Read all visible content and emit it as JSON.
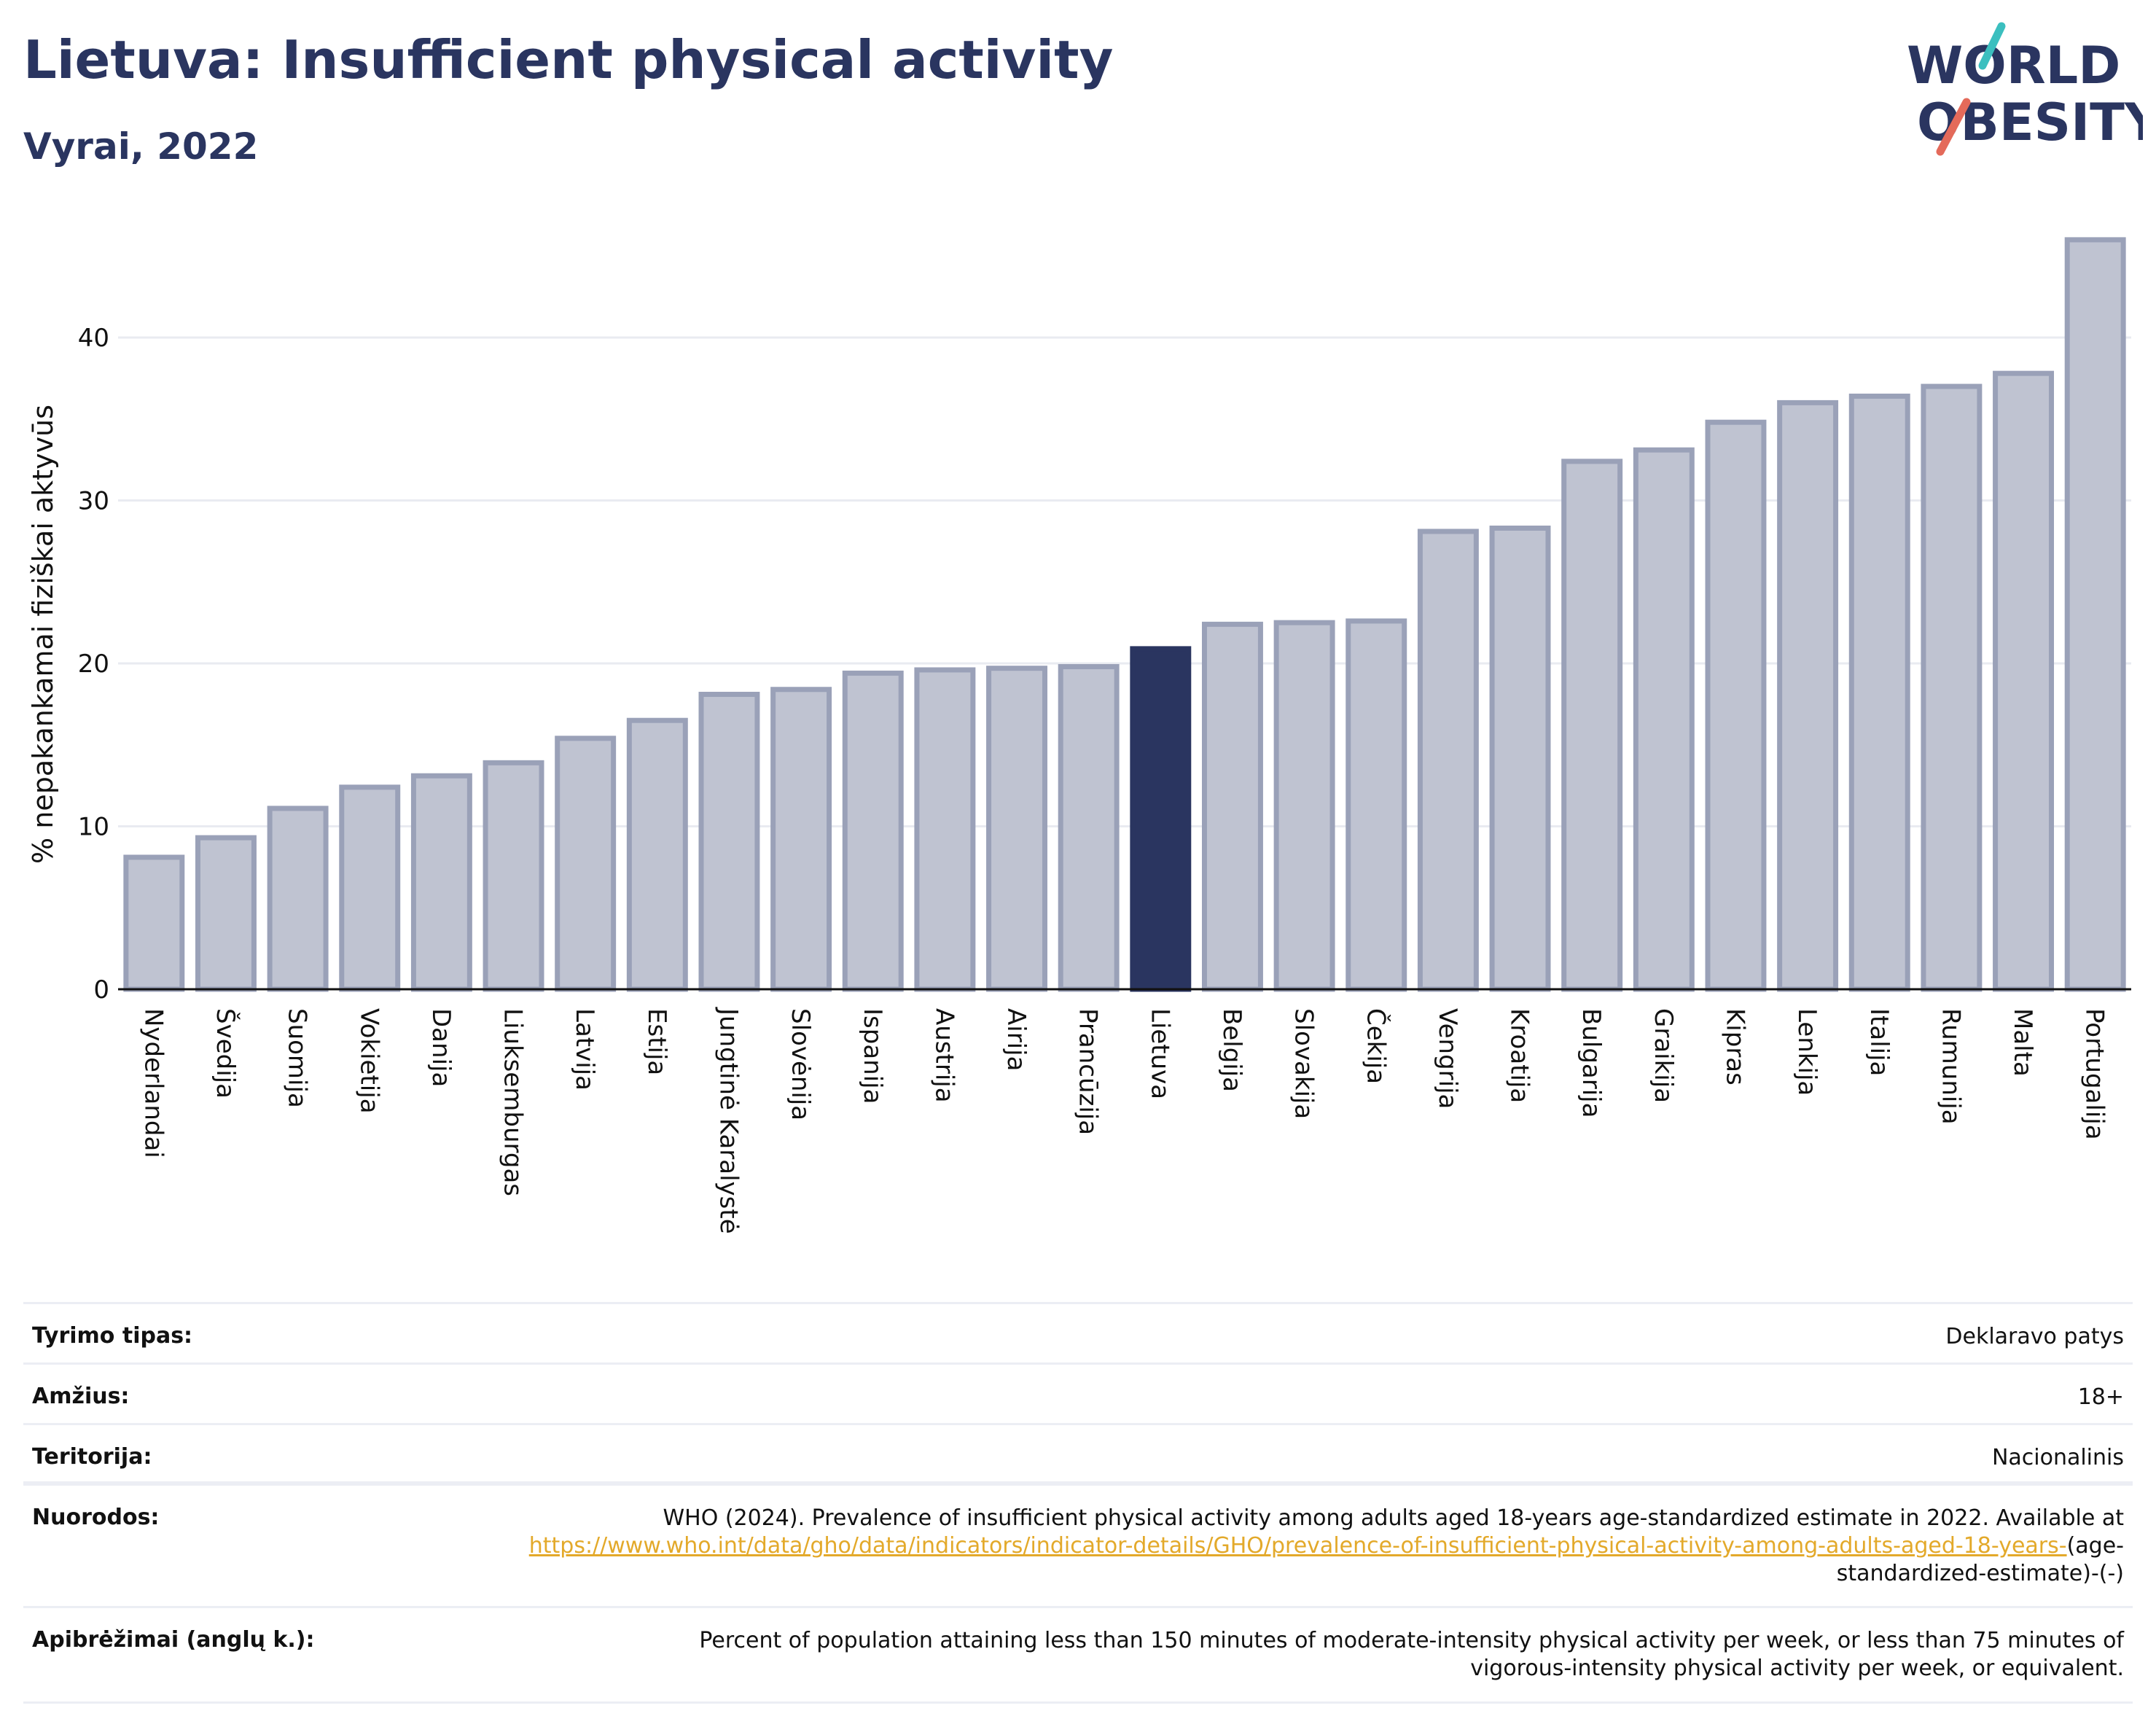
{
  "header": {
    "title": "Lietuva: Insufficient physical activity",
    "subtitle": "Vyrai, 2022"
  },
  "logo": {
    "line1": "WORLD",
    "line2": "OBESITY",
    "slash_colors": [
      "#3bbfbf",
      "#e46a5a"
    ],
    "text_color": "#2a3560"
  },
  "colors": {
    "bar": "#bfc3d1",
    "bar_border": "#9aa1b8",
    "highlight": "#2a3560",
    "grid": "#e9ebf1",
    "axis": "#111111"
  },
  "chart_data": {
    "type": "bar",
    "title": "Lietuva: Insufficient physical activity",
    "subtitle": "Vyrai, 2022",
    "xlabel": "",
    "ylabel": "% nepakankamai fiziškai aktyvūs",
    "ylim": [
      0,
      46.5
    ],
    "yticks": [
      0,
      10,
      20,
      30,
      40
    ],
    "grid": true,
    "highlight": "Lietuva",
    "categories": [
      "Nyderlandai",
      "Švedija",
      "Suomija",
      "Vokietija",
      "Danija",
      "Liuksemburgas",
      "Latvija",
      "Estija",
      "Jungtinė Karalystė",
      "Slovėnija",
      "Ispanija",
      "Austrija",
      "Airija",
      "Prancūzija",
      "Lietuva",
      "Belgija",
      "Slovakija",
      "Čekija",
      "Vengrija",
      "Kroatija",
      "Bulgarija",
      "Graikija",
      "Kipras",
      "Lenkija",
      "Italija",
      "Rumunija",
      "Malta",
      "Portugalija"
    ],
    "values": [
      8.1,
      9.3,
      11.1,
      12.4,
      13.1,
      13.9,
      15.4,
      16.5,
      18.1,
      18.4,
      19.4,
      19.6,
      19.7,
      19.8,
      20.9,
      22.4,
      22.5,
      22.6,
      28.1,
      28.3,
      32.4,
      33.1,
      34.8,
      36.0,
      36.4,
      37.0,
      37.8,
      46.0
    ]
  },
  "meta": {
    "rows": [
      {
        "key": "Tyrimo tipas:",
        "value": "Deklaravo patys"
      },
      {
        "key": "Amžius:",
        "value": "18+"
      },
      {
        "key": "Teritorija:",
        "value": "Nacionalinis"
      }
    ],
    "references": {
      "key": "Nuorodos:",
      "text": "WHO (2024). Prevalence of insufficient physical activity among adults aged 18-years age-standardized estimate in 2022. Available at",
      "link": "https://www.who.int/data/gho/data/indicators/indicator-details/GHO/prevalence-of-insufficient-physical-activity-among-adults-aged-18-years-",
      "suffix": "(age-standardized-estimate)-(-)"
    },
    "definitions": {
      "key": "Apibrėžimai (anglų k.):",
      "text": "Percent of population attaining less than 150 minutes of moderate-intensity physical activity per week, or less than 75 minutes of vigorous-intensity physical activity per week, or equivalent."
    }
  }
}
